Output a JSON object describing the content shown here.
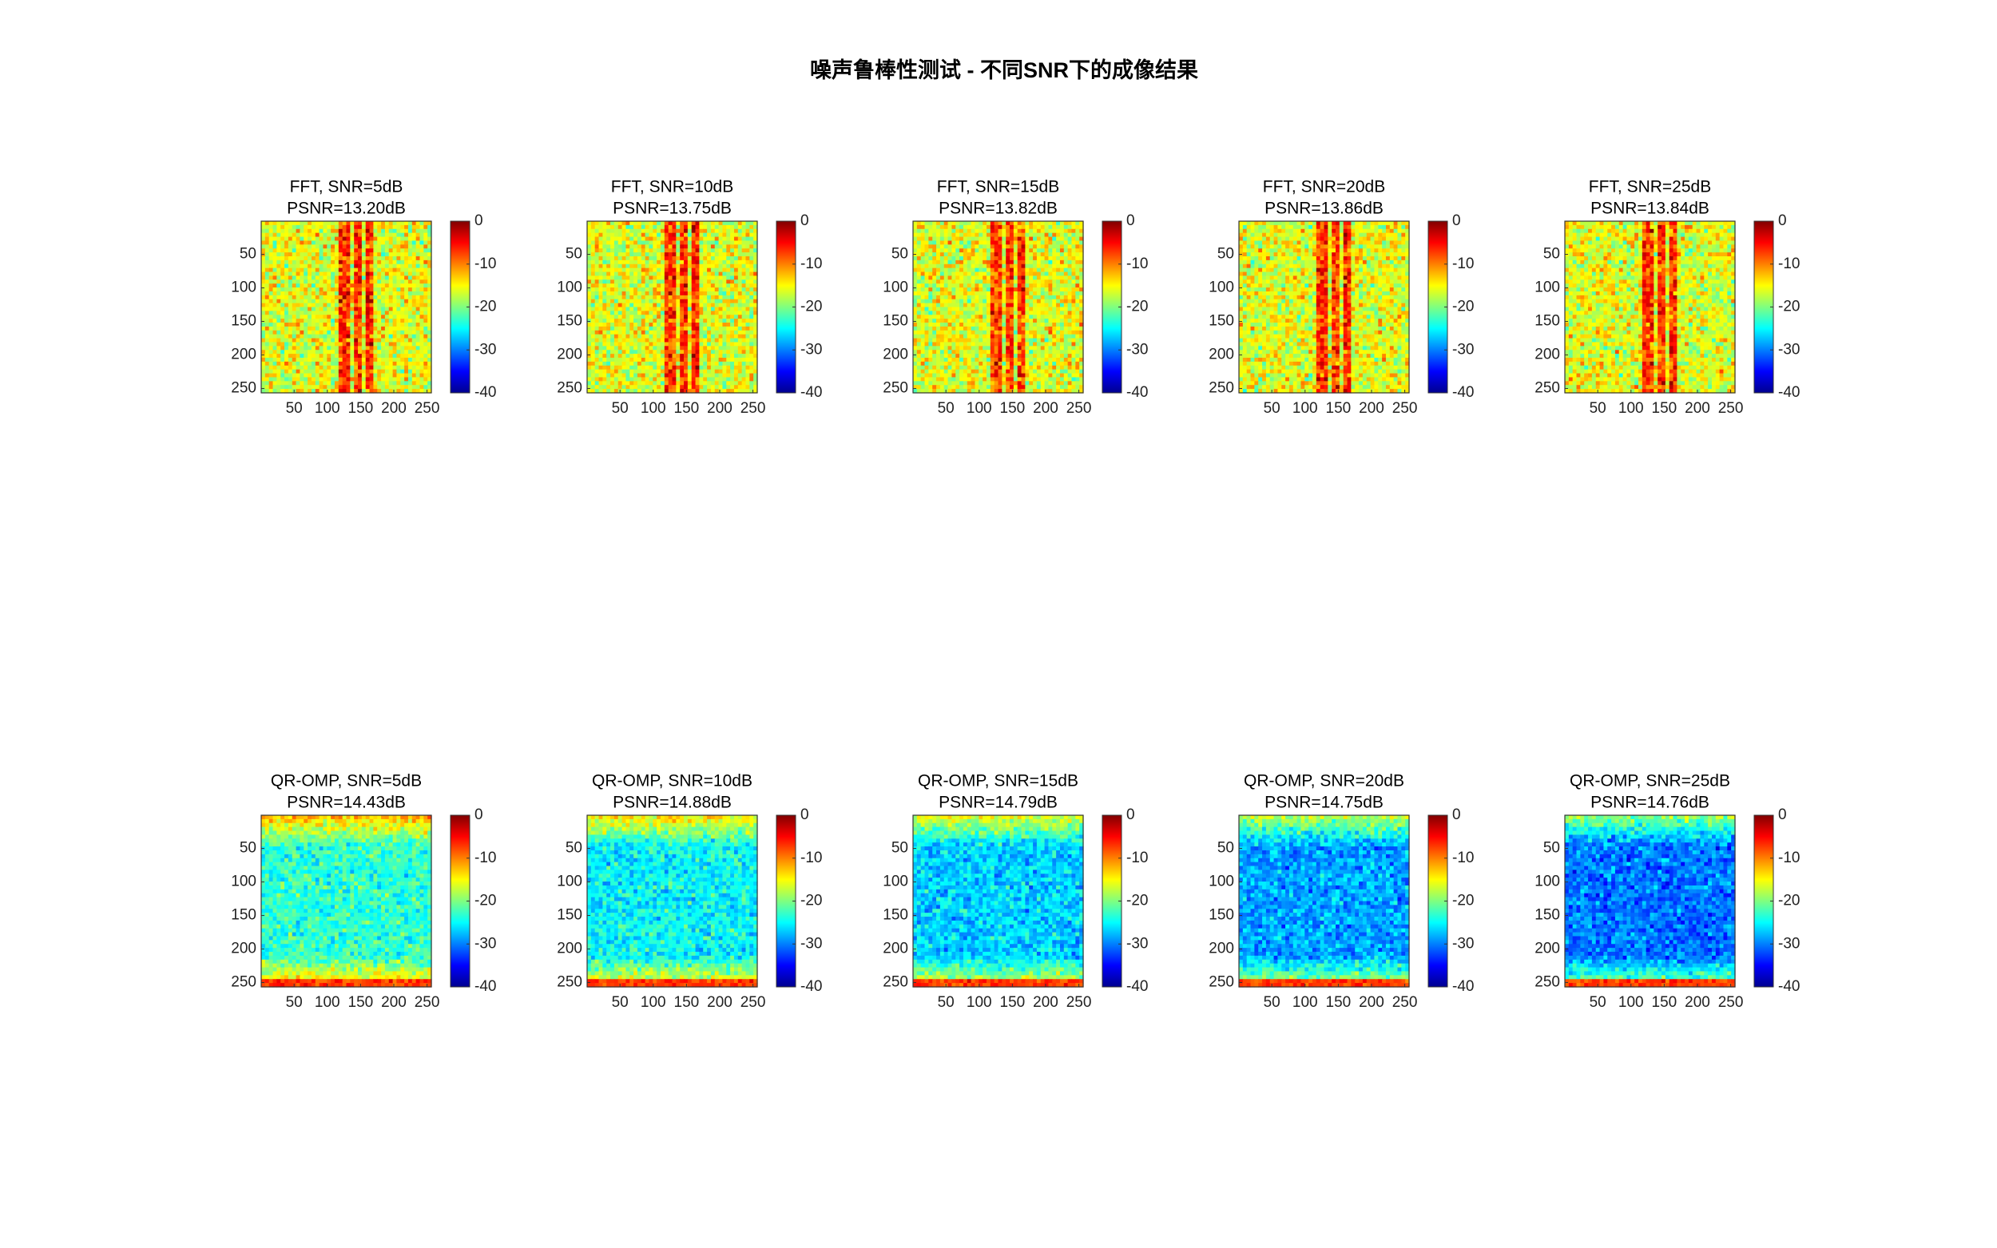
{
  "title": "噪声鲁棒性测试 - 不同SNR下的成像结果",
  "chart_data": [
    {
      "type": "heatmap",
      "title": "FFT, SNR=5dB",
      "subtitle": "PSNR=13.20dB",
      "xlim": [
        0.5,
        256.5
      ],
      "ylim": [
        0.5,
        256.5
      ],
      "xticks": [
        50,
        100,
        150,
        200,
        250
      ],
      "yticks": [
        50,
        100,
        150,
        200,
        250
      ],
      "clim": [
        -40,
        0
      ],
      "cticks": [
        -40,
        -30,
        -20,
        -10,
        0
      ],
      "colormap": "jet"
    },
    {
      "type": "heatmap",
      "title": "FFT, SNR=10dB",
      "subtitle": "PSNR=13.75dB",
      "xlim": [
        0.5,
        256.5
      ],
      "ylim": [
        0.5,
        256.5
      ],
      "xticks": [
        50,
        100,
        150,
        200,
        250
      ],
      "yticks": [
        50,
        100,
        150,
        200,
        250
      ],
      "clim": [
        -40,
        0
      ],
      "cticks": [
        -40,
        -30,
        -20,
        -10,
        0
      ],
      "colormap": "jet"
    },
    {
      "type": "heatmap",
      "title": "FFT, SNR=15dB",
      "subtitle": "PSNR=13.82dB",
      "xlim": [
        0.5,
        256.5
      ],
      "ylim": [
        0.5,
        256.5
      ],
      "xticks": [
        50,
        100,
        150,
        200,
        250
      ],
      "yticks": [
        50,
        100,
        150,
        200,
        250
      ],
      "clim": [
        -40,
        0
      ],
      "cticks": [
        -40,
        -30,
        -20,
        -10,
        0
      ],
      "colormap": "jet"
    },
    {
      "type": "heatmap",
      "title": "FFT, SNR=20dB",
      "subtitle": "PSNR=13.86dB",
      "xlim": [
        0.5,
        256.5
      ],
      "ylim": [
        0.5,
        256.5
      ],
      "xticks": [
        50,
        100,
        150,
        200,
        250
      ],
      "yticks": [
        50,
        100,
        150,
        200,
        250
      ],
      "clim": [
        -40,
        0
      ],
      "cticks": [
        -40,
        -30,
        -20,
        -10,
        0
      ],
      "colormap": "jet"
    },
    {
      "type": "heatmap",
      "title": "FFT, SNR=25dB",
      "subtitle": "PSNR=13.84dB",
      "xlim": [
        0.5,
        256.5
      ],
      "ylim": [
        0.5,
        256.5
      ],
      "xticks": [
        50,
        100,
        150,
        200,
        250
      ],
      "yticks": [
        50,
        100,
        150,
        200,
        250
      ],
      "clim": [
        -40,
        0
      ],
      "cticks": [
        -40,
        -30,
        -20,
        -10,
        0
      ],
      "colormap": "jet"
    },
    {
      "type": "heatmap",
      "title": "QR-OMP, SNR=5dB",
      "subtitle": "PSNR=14.43dB",
      "xlim": [
        0.5,
        256.5
      ],
      "ylim": [
        0.5,
        256.5
      ],
      "xticks": [
        50,
        100,
        150,
        200,
        250
      ],
      "yticks": [
        50,
        100,
        150,
        200,
        250
      ],
      "clim": [
        -40,
        0
      ],
      "cticks": [
        -40,
        -30,
        -20,
        -10,
        0
      ],
      "colormap": "jet"
    },
    {
      "type": "heatmap",
      "title": "QR-OMP, SNR=10dB",
      "subtitle": "PSNR=14.88dB",
      "xlim": [
        0.5,
        256.5
      ],
      "ylim": [
        0.5,
        256.5
      ],
      "xticks": [
        50,
        100,
        150,
        200,
        250
      ],
      "yticks": [
        50,
        100,
        150,
        200,
        250
      ],
      "clim": [
        -40,
        0
      ],
      "cticks": [
        -40,
        -30,
        -20,
        -10,
        0
      ],
      "colormap": "jet"
    },
    {
      "type": "heatmap",
      "title": "QR-OMP, SNR=15dB",
      "subtitle": "PSNR=14.79dB",
      "xlim": [
        0.5,
        256.5
      ],
      "ylim": [
        0.5,
        256.5
      ],
      "xticks": [
        50,
        100,
        150,
        200,
        250
      ],
      "yticks": [
        50,
        100,
        150,
        200,
        250
      ],
      "clim": [
        -40,
        0
      ],
      "cticks": [
        -40,
        -30,
        -20,
        -10,
        0
      ],
      "colormap": "jet"
    },
    {
      "type": "heatmap",
      "title": "QR-OMP, SNR=20dB",
      "subtitle": "PSNR=14.75dB",
      "xlim": [
        0.5,
        256.5
      ],
      "ylim": [
        0.5,
        256.5
      ],
      "xticks": [
        50,
        100,
        150,
        200,
        250
      ],
      "yticks": [
        50,
        100,
        150,
        200,
        250
      ],
      "clim": [
        -40,
        0
      ],
      "cticks": [
        -40,
        -30,
        -20,
        -10,
        0
      ],
      "colormap": "jet"
    },
    {
      "type": "heatmap",
      "title": "QR-OMP, SNR=25dB",
      "subtitle": "PSNR=14.76dB",
      "xlim": [
        0.5,
        256.5
      ],
      "ylim": [
        0.5,
        256.5
      ],
      "xticks": [
        50,
        100,
        150,
        200,
        250
      ],
      "yticks": [
        50,
        100,
        150,
        200,
        250
      ],
      "clim": [
        -40,
        0
      ],
      "cticks": [
        -40,
        -30,
        -20,
        -10,
        0
      ],
      "colormap": "jet"
    }
  ]
}
